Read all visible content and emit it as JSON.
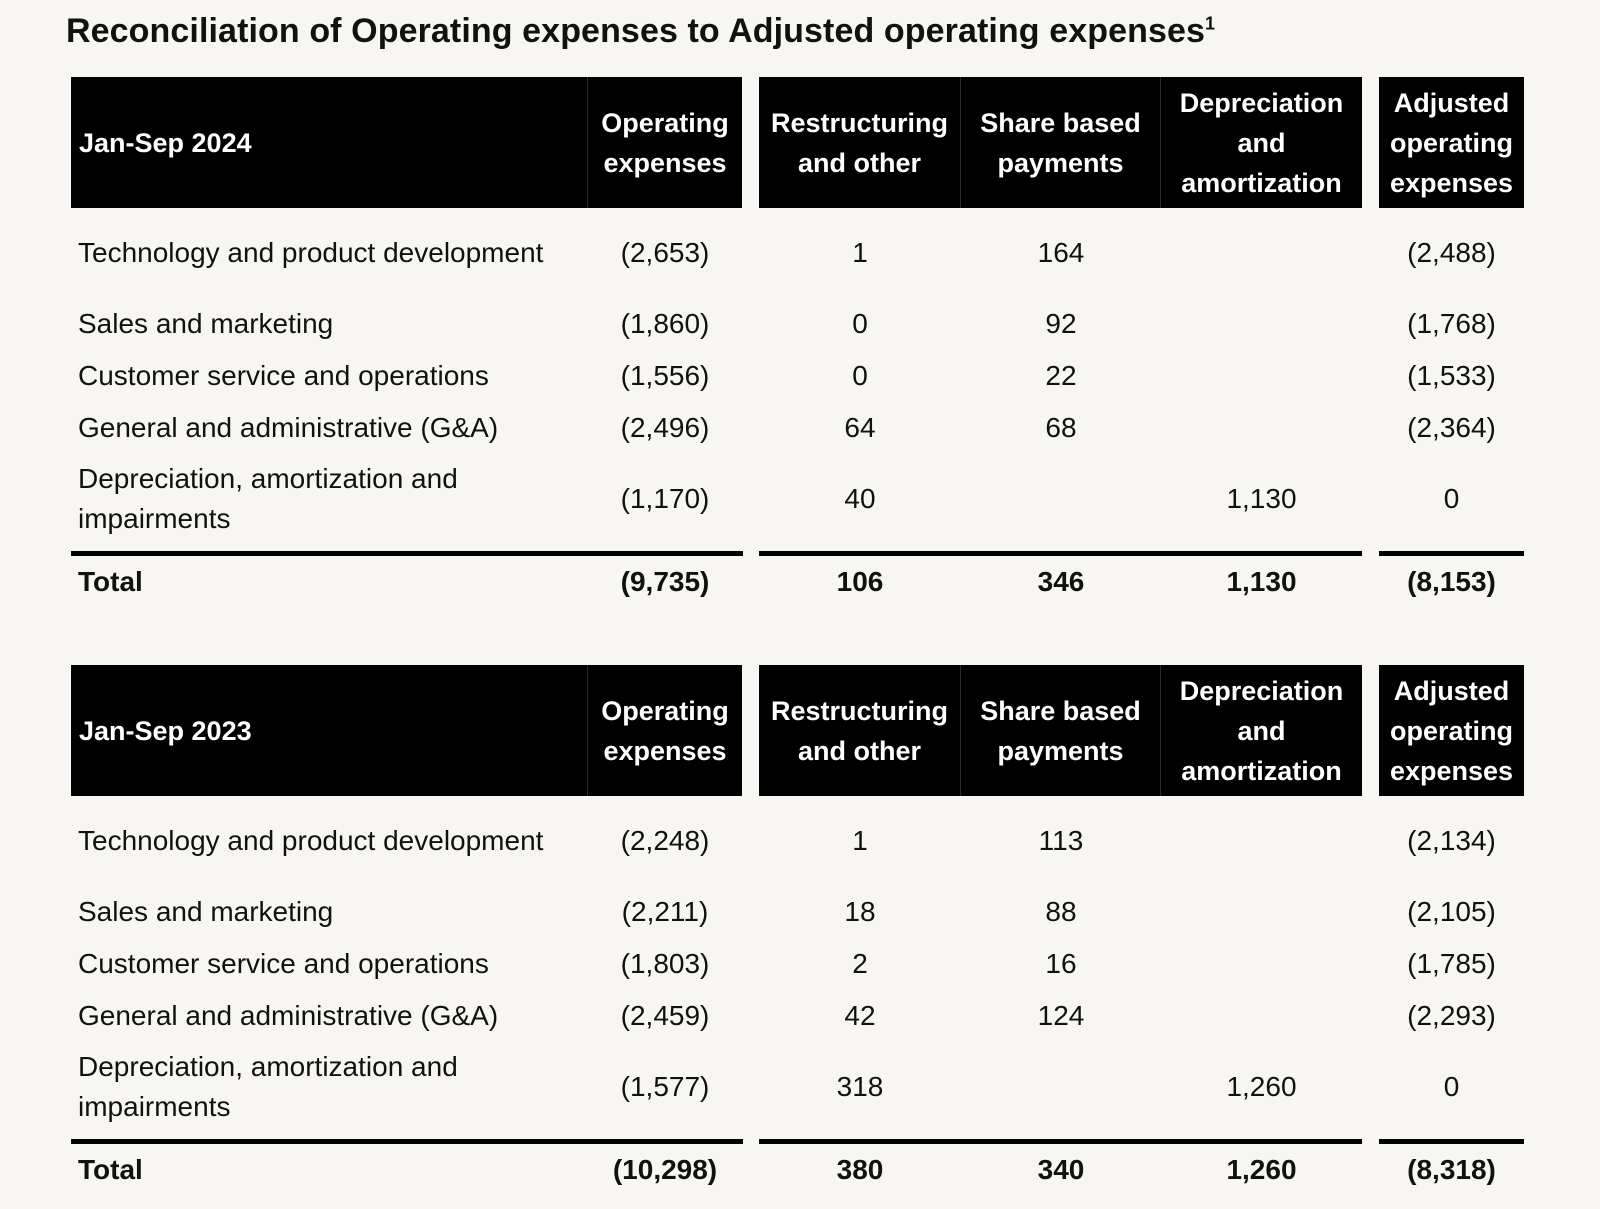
{
  "title": "Reconciliation of Operating expenses to Adjusted operating expenses",
  "title_footnote": "1",
  "columns": {
    "operating_expenses": "Operating expenses",
    "restructuring": "Restructuring and other",
    "share_based": "Share based payments",
    "depreciation": "Depreciation and amortization",
    "adjusted": "Adjusted operating expenses"
  },
  "tables": [
    {
      "period": "Jan-Sep 2024",
      "rows": [
        {
          "label": "Technology and product development",
          "operating_expenses": "(2,653)",
          "restructuring": "1",
          "share_based": "164",
          "depreciation": "",
          "adjusted": "(2,488)"
        },
        {
          "label": "Sales and marketing",
          "operating_expenses": "(1,860)",
          "restructuring": "0",
          "share_based": "92",
          "depreciation": "",
          "adjusted": "(1,768)"
        },
        {
          "label": "Customer service and operations",
          "operating_expenses": "(1,556)",
          "restructuring": "0",
          "share_based": "22",
          "depreciation": "",
          "adjusted": "(1,533)"
        },
        {
          "label": "General and administrative (G&A)",
          "operating_expenses": "(2,496)",
          "restructuring": "64",
          "share_based": "68",
          "depreciation": "",
          "adjusted": "(2,364)"
        },
        {
          "label": "Depreciation, amortization and impairments",
          "operating_expenses": "(1,170)",
          "restructuring": "40",
          "share_based": "",
          "depreciation": "1,130",
          "adjusted": "0"
        }
      ],
      "total": {
        "label": "Total",
        "operating_expenses": "(9,735)",
        "restructuring": "106",
        "share_based": "346",
        "depreciation": "1,130",
        "adjusted": "(8,153)"
      }
    },
    {
      "period": "Jan-Sep 2023",
      "rows": [
        {
          "label": "Technology and product development",
          "operating_expenses": "(2,248)",
          "restructuring": "1",
          "share_based": "113",
          "depreciation": "",
          "adjusted": "(2,134)"
        },
        {
          "label": "Sales and marketing",
          "operating_expenses": "(2,211)",
          "restructuring": "18",
          "share_based": "88",
          "depreciation": "",
          "adjusted": "(2,105)"
        },
        {
          "label": "Customer service and operations",
          "operating_expenses": "(1,803)",
          "restructuring": "2",
          "share_based": "16",
          "depreciation": "",
          "adjusted": "(1,785)"
        },
        {
          "label": "General and administrative (G&A)",
          "operating_expenses": "(2,459)",
          "restructuring": "42",
          "share_based": "124",
          "depreciation": "",
          "adjusted": "(2,293)"
        },
        {
          "label": "Depreciation, amortization and impairments",
          "operating_expenses": "(1,577)",
          "restructuring": "318",
          "share_based": "",
          "depreciation": "1,260",
          "adjusted": "0"
        }
      ],
      "total": {
        "label": "Total",
        "operating_expenses": "(10,298)",
        "restructuring": "380",
        "share_based": "340",
        "depreciation": "1,260",
        "adjusted": "(8,318)"
      }
    }
  ]
}
